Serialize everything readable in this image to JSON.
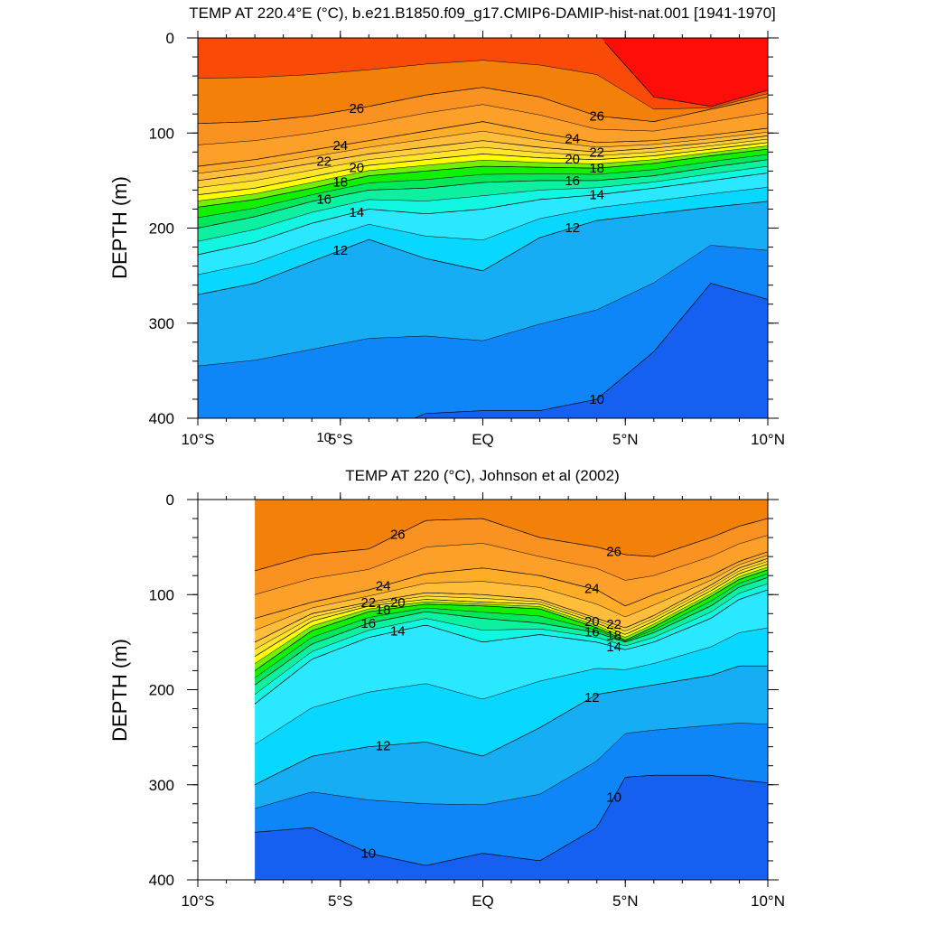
{
  "chart_data": [
    {
      "type": "contour",
      "title": "TEMP AT 220.4°E (°C), b.e21.B1850.f09_g17.CMIP6-DAMIP-hist-nat.001 [1941-1970]",
      "ylabel": "DEPTH (m)",
      "xlabel": "",
      "x_ticks": [
        "10°S",
        "5°S",
        "EQ",
        "5°N",
        "10°N"
      ],
      "x_tick_values": [
        -10,
        -5,
        0,
        5,
        10
      ],
      "y_ticks": [
        "0",
        "100",
        "200",
        "300",
        "400"
      ],
      "y_tick_values": [
        0,
        100,
        200,
        300,
        400
      ],
      "xlim": [
        -10,
        10
      ],
      "ylim": [
        400,
        0
      ],
      "y_reversed": true,
      "data_xlim": [
        -10,
        10
      ],
      "contour_levels": [
        10,
        11,
        12,
        13,
        14,
        15,
        16,
        17,
        18,
        19,
        20,
        21,
        22,
        23,
        24,
        25,
        26,
        27,
        28
      ],
      "labeled_levels": [
        "10",
        "12",
        "14",
        "16",
        "18",
        "20",
        "22",
        "24",
        "26",
        "28"
      ],
      "x": [
        -10,
        -8,
        -6,
        -4,
        -2,
        0,
        2,
        4,
        6,
        8,
        10
      ],
      "isotherm_depths": {
        "28": [
          null,
          null,
          null,
          null,
          null,
          null,
          null,
          null,
          62,
          72,
          55
        ],
        "26": [
          90,
          88,
          82,
          72,
          60,
          52,
          62,
          82,
          88,
          75,
          62
        ],
        "24": [
          135,
          128,
          118,
          108,
          98,
          88,
          100,
          110,
          108,
          102,
          95
        ],
        "22": [
          150,
          142,
          132,
          122,
          115,
          108,
          115,
          120,
          116,
          110,
          103
        ],
        "20": [
          165,
          158,
          146,
          134,
          128,
          122,
          126,
          128,
          124,
          117,
          110
        ],
        "18": [
          178,
          170,
          158,
          145,
          140,
          135,
          136,
          137,
          132,
          124,
          117
        ],
        "16": [
          200,
          188,
          172,
          160,
          158,
          152,
          150,
          150,
          145,
          136,
          128
        ],
        "14": [
          228,
          215,
          195,
          180,
          185,
          180,
          170,
          165,
          158,
          150,
          142
        ],
        "12": [
          270,
          258,
          235,
          212,
          232,
          245,
          210,
          192,
          185,
          178,
          172
        ],
        "10": [
          420,
          420,
          420,
          420,
          395,
          392,
          392,
          380,
          330,
          258,
          275
        ]
      }
    },
    {
      "type": "contour",
      "title": "TEMP AT 220 (°C), Johnson et al (2002)",
      "ylabel": "DEPTH (m)",
      "xlabel": "",
      "x_ticks": [
        "10°S",
        "5°S",
        "EQ",
        "5°N",
        "10°N"
      ],
      "x_tick_values": [
        -10,
        -5,
        0,
        5,
        10
      ],
      "y_ticks": [
        "0",
        "100",
        "200",
        "300",
        "400"
      ],
      "y_tick_values": [
        0,
        100,
        200,
        300,
        400
      ],
      "xlim": [
        -10,
        10
      ],
      "ylim": [
        400,
        0
      ],
      "y_reversed": true,
      "data_xlim": [
        -8,
        10
      ],
      "contour_levels": [
        10,
        11,
        12,
        13,
        14,
        15,
        16,
        17,
        18,
        19,
        20,
        21,
        22,
        23,
        24,
        25,
        26,
        27
      ],
      "labeled_levels": [
        "10",
        "12",
        "14",
        "16",
        "18",
        "20",
        "22",
        "24",
        "26"
      ],
      "x": [
        -8,
        -6,
        -4,
        -2,
        0,
        2,
        4,
        5,
        6,
        8,
        9,
        10
      ],
      "isotherm_depths": {
        "26": [
          75,
          58,
          52,
          22,
          20,
          40,
          50,
          58,
          60,
          40,
          28,
          20
        ],
        "24": [
          125,
          108,
          95,
          78,
          72,
          80,
          95,
          112,
          100,
          80,
          65,
          55
        ],
        "22": [
          150,
          120,
          108,
          98,
          100,
          105,
          125,
          135,
          122,
          90,
          72,
          62
        ],
        "20": [
          165,
          128,
          112,
          105,
          108,
          110,
          130,
          142,
          128,
          96,
          78,
          68
        ],
        "18": [
          180,
          138,
          118,
          110,
          112,
          115,
          135,
          148,
          134,
          102,
          84,
          74
        ],
        "16": [
          195,
          152,
          130,
          118,
          125,
          130,
          140,
          150,
          140,
          112,
          92,
          82
        ],
        "14": [
          215,
          168,
          145,
          132,
          150,
          142,
          150,
          158,
          150,
          125,
          105,
          95
        ],
        "12": [
          300,
          270,
          260,
          255,
          270,
          240,
          205,
          200,
          195,
          185,
          175,
          175
        ],
        "10": [
          350,
          345,
          372,
          385,
          372,
          380,
          345,
          292,
          290,
          290,
          295,
          298
        ]
      }
    }
  ]
}
